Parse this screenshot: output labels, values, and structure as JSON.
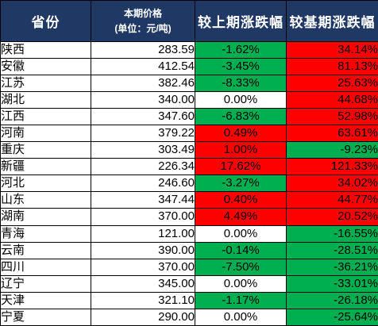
{
  "colors": {
    "header_bg": "#1f3864",
    "header_text": "#ffffff",
    "up": "#ff0000",
    "down": "#00b050",
    "flat": "#ffffff"
  },
  "header": {
    "province": "省份",
    "price_line1": "本期价格",
    "price_line2": "(单位：元/吨)",
    "mom": "较上期涨跌幅",
    "yoy": "较基期涨跌幅"
  },
  "rows": [
    {
      "province": "陕西",
      "price": "283.59",
      "mom": "-1.62%",
      "yoy": "34.14%"
    },
    {
      "province": "安徽",
      "price": "412.54",
      "mom": "-3.45%",
      "yoy": "81.13%"
    },
    {
      "province": "江苏",
      "price": "382.46",
      "mom": "-8.33%",
      "yoy": "25.63%"
    },
    {
      "province": "湖北",
      "price": "340.00",
      "mom": "0.00%",
      "yoy": "44.68%"
    },
    {
      "province": "江西",
      "price": "347.60",
      "mom": "-6.83%",
      "yoy": "52.98%"
    },
    {
      "province": "河南",
      "price": "379.22",
      "mom": "0.49%",
      "yoy": "63.61%"
    },
    {
      "province": "重庆",
      "price": "303.49",
      "mom": "1.00%",
      "yoy": "-9.23%"
    },
    {
      "province": "新疆",
      "price": "226.34",
      "mom": "17.62%",
      "yoy": "121.33%"
    },
    {
      "province": "河北",
      "price": "246.60",
      "mom": "-3.27%",
      "yoy": "34.02%"
    },
    {
      "province": "山东",
      "price": "347.44",
      "mom": "0.40%",
      "yoy": "44.77%"
    },
    {
      "province": "湖南",
      "price": "370.00",
      "mom": "4.49%",
      "yoy": "20.52%"
    },
    {
      "province": "青海",
      "price": "121.00",
      "mom": "0.00%",
      "yoy": "-16.55%"
    },
    {
      "province": "云南",
      "price": "390.00",
      "mom": "-0.14%",
      "yoy": "-28.51%"
    },
    {
      "province": "四川",
      "price": "370.00",
      "mom": "-7.50%",
      "yoy": "-36.21%"
    },
    {
      "province": "辽宁",
      "price": "345.00",
      "mom": "0.00%",
      "yoy": "-33.01%"
    },
    {
      "province": "天津",
      "price": "321.10",
      "mom": "-1.17%",
      "yoy": "-26.18%"
    },
    {
      "province": "宁夏",
      "price": "290.00",
      "mom": "0.00%",
      "yoy": "-25.64%"
    }
  ]
}
